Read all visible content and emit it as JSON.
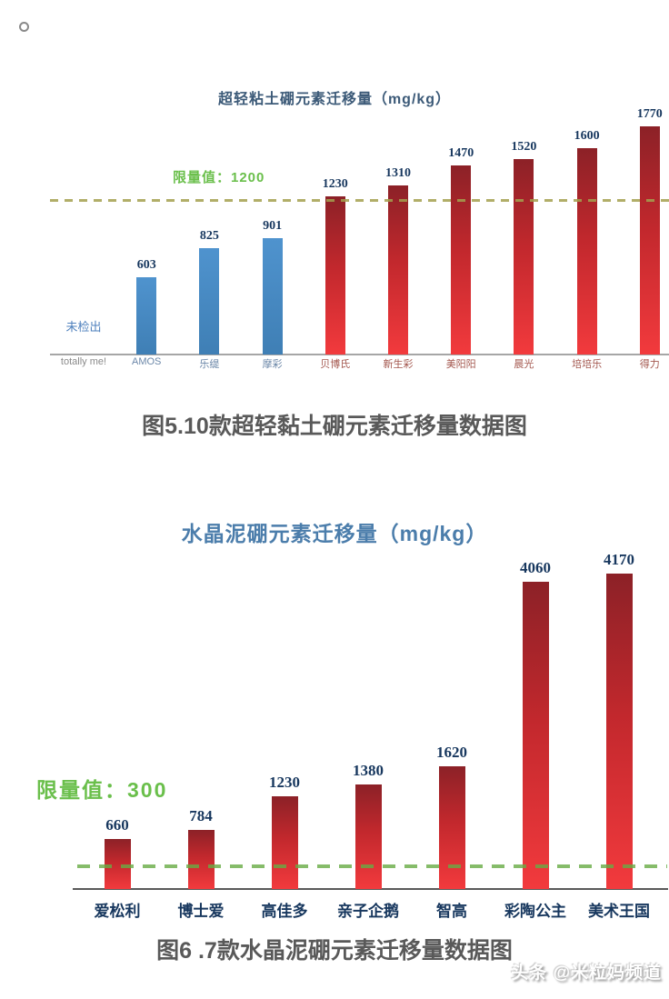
{
  "colors": {
    "blue_bar": "#4f93ce",
    "blue_bar_dark": "#3f7fb5",
    "red_bar_top": "#8c2127",
    "red_bar_mid": "#c2282d",
    "red_bar_bottom": "#f23a3d",
    "limit_green": "#6abf4b",
    "value_navy": "#17375e",
    "dash_olive": "#a3a04e",
    "dash_green": "#67ab44",
    "axis_gray_top": "#a6a6a6",
    "axis_gray_bottom": "#595959",
    "label_gray": "#8a8a8a",
    "label_blue_tint": "#6b87a8",
    "label_red_tint": "#a3574e",
    "not_detected_blue": "#4f81bd"
  },
  "chart_data": [
    {
      "type": "bar",
      "title": "超轻粘土硼元素迁移量（mg/kg）",
      "limit_label": "限量值：1200",
      "limit_value": 1200,
      "not_detected_label": "未检出",
      "categories": [
        "totally me!",
        "AMOS",
        "乐缇",
        "摩彩",
        "贝博氏",
        "新生彩",
        "美阳阳",
        "晨光",
        "培培乐",
        "得力"
      ],
      "values": [
        null,
        603,
        825,
        901,
        1230,
        1310,
        1470,
        1520,
        1600,
        1770
      ],
      "bar_colors": [
        "none",
        "blue",
        "blue",
        "blue",
        "red",
        "red",
        "red",
        "red",
        "red",
        "red"
      ],
      "xlabel": "",
      "ylabel": "",
      "grid": false,
      "legend": false,
      "caption": "图5.10款超轻黏土硼元素迁移量数据图"
    },
    {
      "type": "bar",
      "title": "水晶泥硼元素迁移量（mg/kg）",
      "limit_label": "限量值：300",
      "limit_value": 300,
      "categories": [
        "爱松利",
        "博士爱",
        "高佳多",
        "亲子企鹅",
        "智高",
        "彩陶公主",
        "美术王国"
      ],
      "values": [
        660,
        784,
        1230,
        1380,
        1620,
        4060,
        4170
      ],
      "bar_colors": [
        "red",
        "red",
        "red",
        "red",
        "red",
        "red",
        "red"
      ],
      "xlabel": "",
      "ylabel": "",
      "grid": false,
      "legend": false,
      "caption": "图6 .7款水晶泥硼元素迁移量数据图"
    }
  ],
  "watermark": {
    "text": "头条 @米粒妈频道"
  }
}
